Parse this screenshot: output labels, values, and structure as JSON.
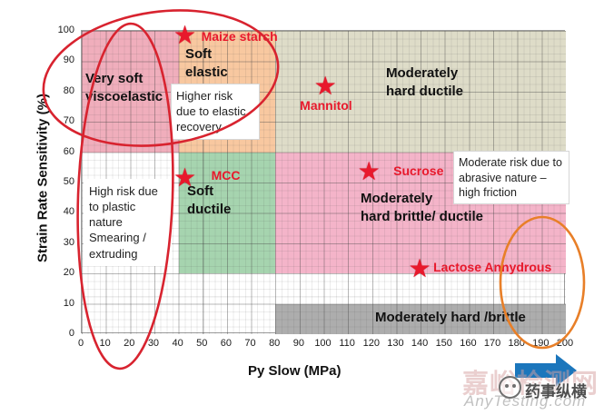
{
  "chart_data": {
    "type": "scatter",
    "title": "",
    "xlabel": "Py Slow (MPa)",
    "ylabel": "Strain Rate Sensitivity (%)",
    "xlim": [
      0,
      200
    ],
    "ylim": [
      0,
      100
    ],
    "x_ticks": [
      0,
      10,
      20,
      30,
      40,
      50,
      60,
      70,
      80,
      90,
      100,
      110,
      120,
      130,
      140,
      150,
      160,
      170,
      180,
      190,
      200
    ],
    "y_ticks": [
      0,
      10,
      20,
      30,
      40,
      50,
      60,
      70,
      80,
      90,
      100
    ],
    "grid": "fine graph-paper grid, major every 10, minor every 2.5",
    "regions": [
      {
        "label": "Very soft\nviscoelastic",
        "x": [
          0,
          40
        ],
        "y": [
          60,
          100
        ],
        "color": "#f0aebc"
      },
      {
        "label": "Soft\nelastic",
        "x": [
          40,
          80
        ],
        "y": [
          60,
          100
        ],
        "color": "#f8c8a0"
      },
      {
        "label": "Moderately\nhard ductile",
        "x": [
          80,
          200
        ],
        "y": [
          60,
          100
        ],
        "color": "#dedcc8"
      },
      {
        "label": "Soft\nductile",
        "x": [
          40,
          80
        ],
        "y": [
          20,
          60
        ],
        "color": "#a6d4af"
      },
      {
        "label": "Moderately\nhard brittle/ ductile",
        "x": [
          80,
          200
        ],
        "y": [
          20,
          60
        ],
        "color": "#f4b4c9"
      },
      {
        "label": "Moderately hard /brittle",
        "x": [
          80,
          200
        ],
        "y": [
          0,
          10
        ],
        "color": "#adadad"
      }
    ],
    "points": [
      {
        "name": "Maize starch",
        "x": 43,
        "y": 98
      },
      {
        "name": "Mannitol",
        "x": 101,
        "y": 81
      },
      {
        "name": "MCC",
        "x": 43,
        "y": 51
      },
      {
        "name": "Sucrose",
        "x": 119,
        "y": 53
      },
      {
        "name": "Lactose Annydrous",
        "x": 140,
        "y": 21
      }
    ],
    "annotations": [
      {
        "text": "Higher  risk due to elastic recovery"
      },
      {
        "text": "High risk due to plastic nature Smearing / extruding"
      },
      {
        "text": "Moderate risk due to abrasive nature –high friction"
      }
    ],
    "legend_position": "none"
  },
  "colors": {
    "marker_red": "#e8192c",
    "ellipse_red": "#d8232f",
    "ellipse_orange": "#e87f28",
    "arrow_blue": "#1b76bc"
  },
  "watermarks": {
    "site_cn": "嘉峪检测网",
    "brand_cn": "药事纵横",
    "site_en": "AnyTesting.com"
  }
}
